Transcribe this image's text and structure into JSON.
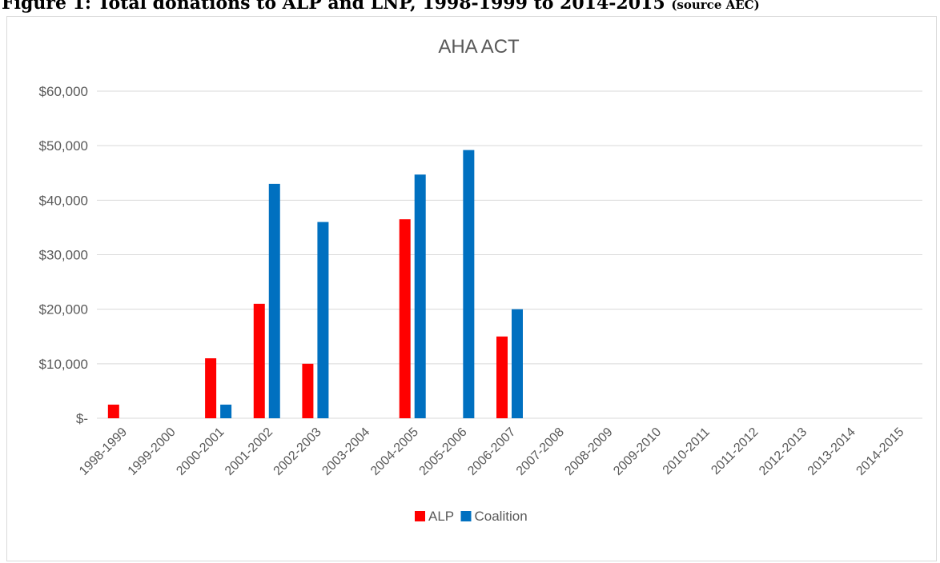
{
  "figure_caption": {
    "main": "Figure 1: Total donations to ALP and LNP, 1998-1999 to 2014-2015",
    "source": "(source AEC)"
  },
  "chart_data": {
    "type": "bar",
    "title": "AHA ACT",
    "xlabel": "",
    "ylabel": "",
    "categories": [
      "1998-1999",
      "1999-2000",
      "2000-2001",
      "2001-2002",
      "2002-2003",
      "2003-2004",
      "2004-2005",
      "2005-2006",
      "2006-2007",
      "2007-2008",
      "2008-2009",
      "2009-2010",
      "2010-2011",
      "2011-2012",
      "2012-2013",
      "2013-2014",
      "2014-2015"
    ],
    "series": [
      {
        "name": "ALP",
        "color": "#ff0000",
        "values": [
          2500,
          0,
          11000,
          21000,
          10000,
          0,
          36500,
          0,
          15000,
          0,
          0,
          0,
          0,
          0,
          0,
          0,
          0
        ]
      },
      {
        "name": "Coalition",
        "color": "#0070c0",
        "values": [
          0,
          0,
          2500,
          43000,
          36000,
          0,
          44700,
          49200,
          20000,
          0,
          0,
          0,
          0,
          0,
          0,
          0,
          0
        ]
      }
    ],
    "ylim": [
      0,
      60000
    ],
    "yticks": [
      0,
      10000,
      20000,
      30000,
      40000,
      50000,
      60000
    ],
    "ytick_labels": [
      "$-",
      "$10,000",
      "$20,000",
      "$30,000",
      "$40,000",
      "$50,000",
      "$60,000"
    ],
    "grid": true,
    "legend_position": "bottom"
  }
}
